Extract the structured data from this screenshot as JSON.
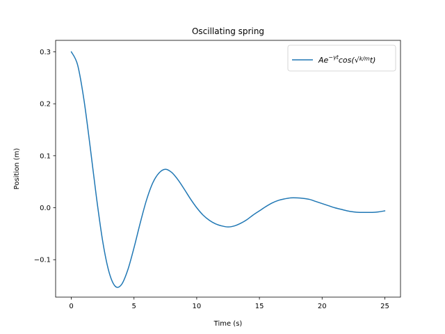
{
  "chart_data": {
    "type": "line",
    "title": "Oscillating spring",
    "xlabel": "Time (s)",
    "ylabel": "Position (m)",
    "xlim": [
      -1.25,
      26.25
    ],
    "ylim": [
      -0.172,
      0.322
    ],
    "x_ticks": [
      0,
      5,
      10,
      15,
      20,
      25
    ],
    "x_tick_labels": [
      "0",
      "5",
      "10",
      "15",
      "20",
      "25"
    ],
    "y_ticks": [
      -0.1,
      0.0,
      0.1,
      0.2,
      0.3
    ],
    "y_tick_labels": [
      "−0.1",
      "0.0",
      "0.1",
      "0.2",
      "0.3"
    ],
    "grid": false,
    "legend_position": "top-right",
    "series": [
      {
        "name": "Ae^{-γt}cos(√(k/m) t)",
        "color": "#1f77b4",
        "x": [
          0,
          0.5,
          1,
          1.5,
          2,
          2.5,
          3,
          3.5,
          4,
          4.5,
          5,
          5.5,
          6,
          6.5,
          7,
          7.5,
          8,
          8.5,
          9,
          9.5,
          10,
          10.5,
          11,
          11.5,
          12,
          12.5,
          13,
          13.5,
          14,
          14.5,
          15,
          15.5,
          16,
          16.5,
          17,
          17.5,
          18,
          18.5,
          19,
          19.5,
          20,
          20.5,
          21,
          21.5,
          22,
          22.5,
          23,
          23.5,
          24,
          24.5,
          25
        ],
        "y": [
          0.3,
          0.275,
          0.209,
          0.118,
          0.021,
          -0.064,
          -0.123,
          -0.151,
          -0.148,
          -0.12,
          -0.077,
          -0.029,
          0.015,
          0.048,
          0.067,
          0.074,
          0.068,
          0.054,
          0.036,
          0.017,
          0.0,
          -0.014,
          -0.024,
          -0.031,
          -0.035,
          -0.037,
          -0.035,
          -0.03,
          -0.023,
          -0.014,
          -0.006,
          0.002,
          0.009,
          0.014,
          0.017,
          0.019,
          0.019,
          0.018,
          0.016,
          0.012,
          0.008,
          0.004,
          0.0,
          -0.003,
          -0.006,
          -0.008,
          -0.009,
          -0.009,
          -0.009,
          -0.008,
          -0.006
        ]
      }
    ]
  }
}
